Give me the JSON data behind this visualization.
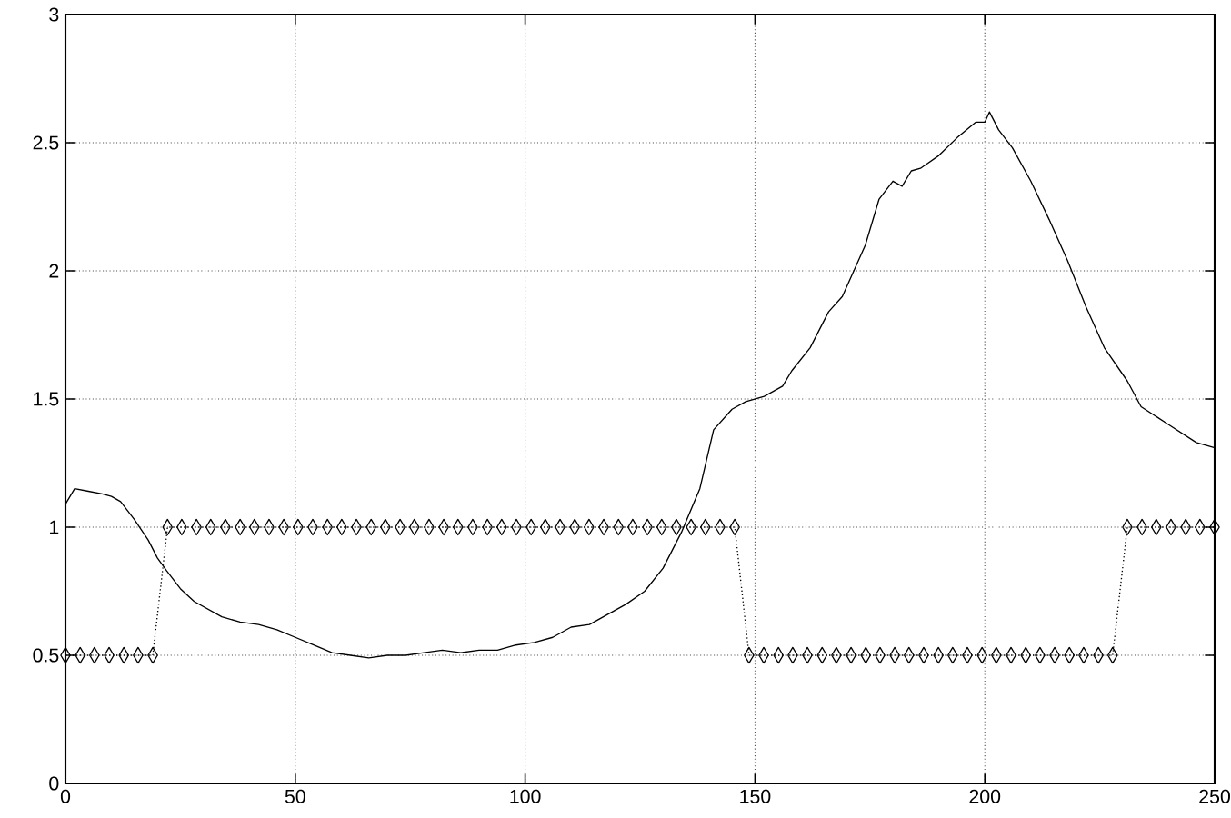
{
  "chart_data": {
    "type": "line",
    "xlim": [
      0,
      250
    ],
    "ylim": [
      0,
      3
    ],
    "xticks": [
      0,
      50,
      100,
      150,
      200,
      250
    ],
    "yticks": [
      0,
      0.5,
      1,
      1.5,
      2,
      2.5,
      3
    ],
    "grid": true,
    "series": [
      {
        "color": "#000000",
        "line_style": "solid",
        "marker": "none",
        "x": [
          0,
          2,
          5,
          8,
          10,
          12,
          15,
          18,
          20,
          22,
          25,
          28,
          31,
          34,
          38,
          42,
          46,
          50,
          54,
          58,
          62,
          66,
          70,
          74,
          78,
          82,
          86,
          90,
          94,
          98,
          102,
          106,
          110,
          114,
          118,
          122,
          126,
          130,
          134,
          138,
          141,
          145,
          148,
          152,
          156,
          158,
          162,
          166,
          169,
          174,
          177,
          180,
          182,
          184,
          186,
          190,
          194,
          198,
          200,
          201,
          203,
          206,
          210,
          214,
          218,
          222,
          226,
          231,
          234,
          240,
          246,
          250
        ],
        "values": [
          1.09,
          1.15,
          1.14,
          1.13,
          1.12,
          1.1,
          1.03,
          0.95,
          0.88,
          0.83,
          0.76,
          0.71,
          0.68,
          0.65,
          0.63,
          0.62,
          0.6,
          0.57,
          0.54,
          0.51,
          0.5,
          0.49,
          0.5,
          0.5,
          0.51,
          0.52,
          0.51,
          0.52,
          0.52,
          0.54,
          0.55,
          0.57,
          0.61,
          0.62,
          0.66,
          0.7,
          0.75,
          0.84,
          0.98,
          1.15,
          1.38,
          1.46,
          1.49,
          1.51,
          1.55,
          1.61,
          1.7,
          1.84,
          1.9,
          2.1,
          2.28,
          2.35,
          2.33,
          2.39,
          2.4,
          2.45,
          2.52,
          2.58,
          2.58,
          2.62,
          2.55,
          2.48,
          2.35,
          2.2,
          2.04,
          1.86,
          1.7,
          1.57,
          1.47,
          1.4,
          1.33,
          1.31
        ]
      },
      {
        "color": "#000000",
        "line_style": "dotted",
        "marker": "diamond",
        "x": [
          0,
          3.2,
          6.3,
          9.5,
          12.7,
          15.8,
          19,
          22.2,
          25.3,
          28.5,
          31.6,
          34.8,
          38,
          41.1,
          44.3,
          47.5,
          50.6,
          53.8,
          57,
          60.1,
          63.3,
          66.5,
          69.6,
          72.8,
          75.9,
          79.1,
          82.3,
          85.4,
          88.6,
          91.8,
          94.9,
          98.1,
          101.3,
          104.4,
          107.6,
          110.8,
          113.9,
          117.1,
          120.3,
          123.4,
          126.6,
          129.7,
          132.9,
          136.1,
          139.2,
          142.4,
          145.6,
          148.7,
          151.9,
          155.1,
          158.2,
          161.4,
          164.6,
          167.7,
          170.9,
          174.1,
          177.2,
          180.4,
          183.5,
          186.7,
          189.9,
          193,
          196.2,
          199.4,
          202.5,
          205.7,
          208.9,
          212,
          215.2,
          218.4,
          221.5,
          224.7,
          227.8,
          231,
          234.2,
          237.3,
          240.5,
          243.7,
          246.8,
          250
        ],
        "values": [
          0.5,
          0.5,
          0.5,
          0.5,
          0.5,
          0.5,
          0.5,
          1,
          1,
          1,
          1,
          1,
          1,
          1,
          1,
          1,
          1,
          1,
          1,
          1,
          1,
          1,
          1,
          1,
          1,
          1,
          1,
          1,
          1,
          1,
          1,
          1,
          1,
          1,
          1,
          1,
          1,
          1,
          1,
          1,
          1,
          1,
          1,
          1,
          1,
          1,
          1,
          0.5,
          0.5,
          0.5,
          0.5,
          0.5,
          0.5,
          0.5,
          0.5,
          0.5,
          0.5,
          0.5,
          0.5,
          0.5,
          0.5,
          0.5,
          0.5,
          0.5,
          0.5,
          0.5,
          0.5,
          0.5,
          0.5,
          0.5,
          0.5,
          0.5,
          0.5,
          1,
          1,
          1,
          1,
          1,
          1,
          1
        ]
      }
    ]
  }
}
